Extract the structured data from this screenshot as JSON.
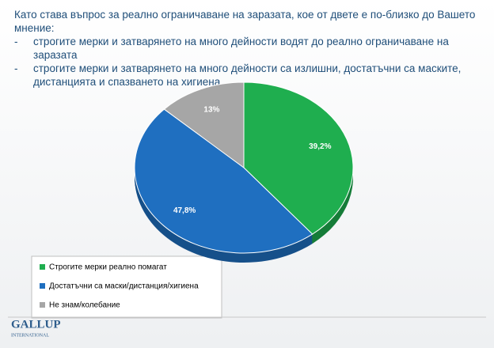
{
  "chart_data": {
    "type": "pie",
    "title": "Като става въпрос за реално ограничаване на заразата, кое от двете е по-близко до Вашето мнение:",
    "subtitle_lines": [
      "строгите мерки и затварянето на много дейности водят до реално ограничаване на заразата",
      "строгите мерки и затварянето на много дейности са излишни, достатъчни са маските, дистанцията и спазването на хигиена"
    ],
    "categories": [
      "Строгите мерки реално помагат",
      "Достатъчни са маски/дистанция/хигиена",
      "Не знам/колебание"
    ],
    "values": [
      39.2,
      47.8,
      13
    ],
    "value_labels": [
      "39,2%",
      "47,8%",
      "13%"
    ],
    "colors": [
      "#1fae4f",
      "#1f6fc0",
      "#a6a6a6"
    ],
    "legend": "bottom-left"
  },
  "logo": {
    "name": "GALLUP",
    "sub": "INTERNATIONAL"
  }
}
